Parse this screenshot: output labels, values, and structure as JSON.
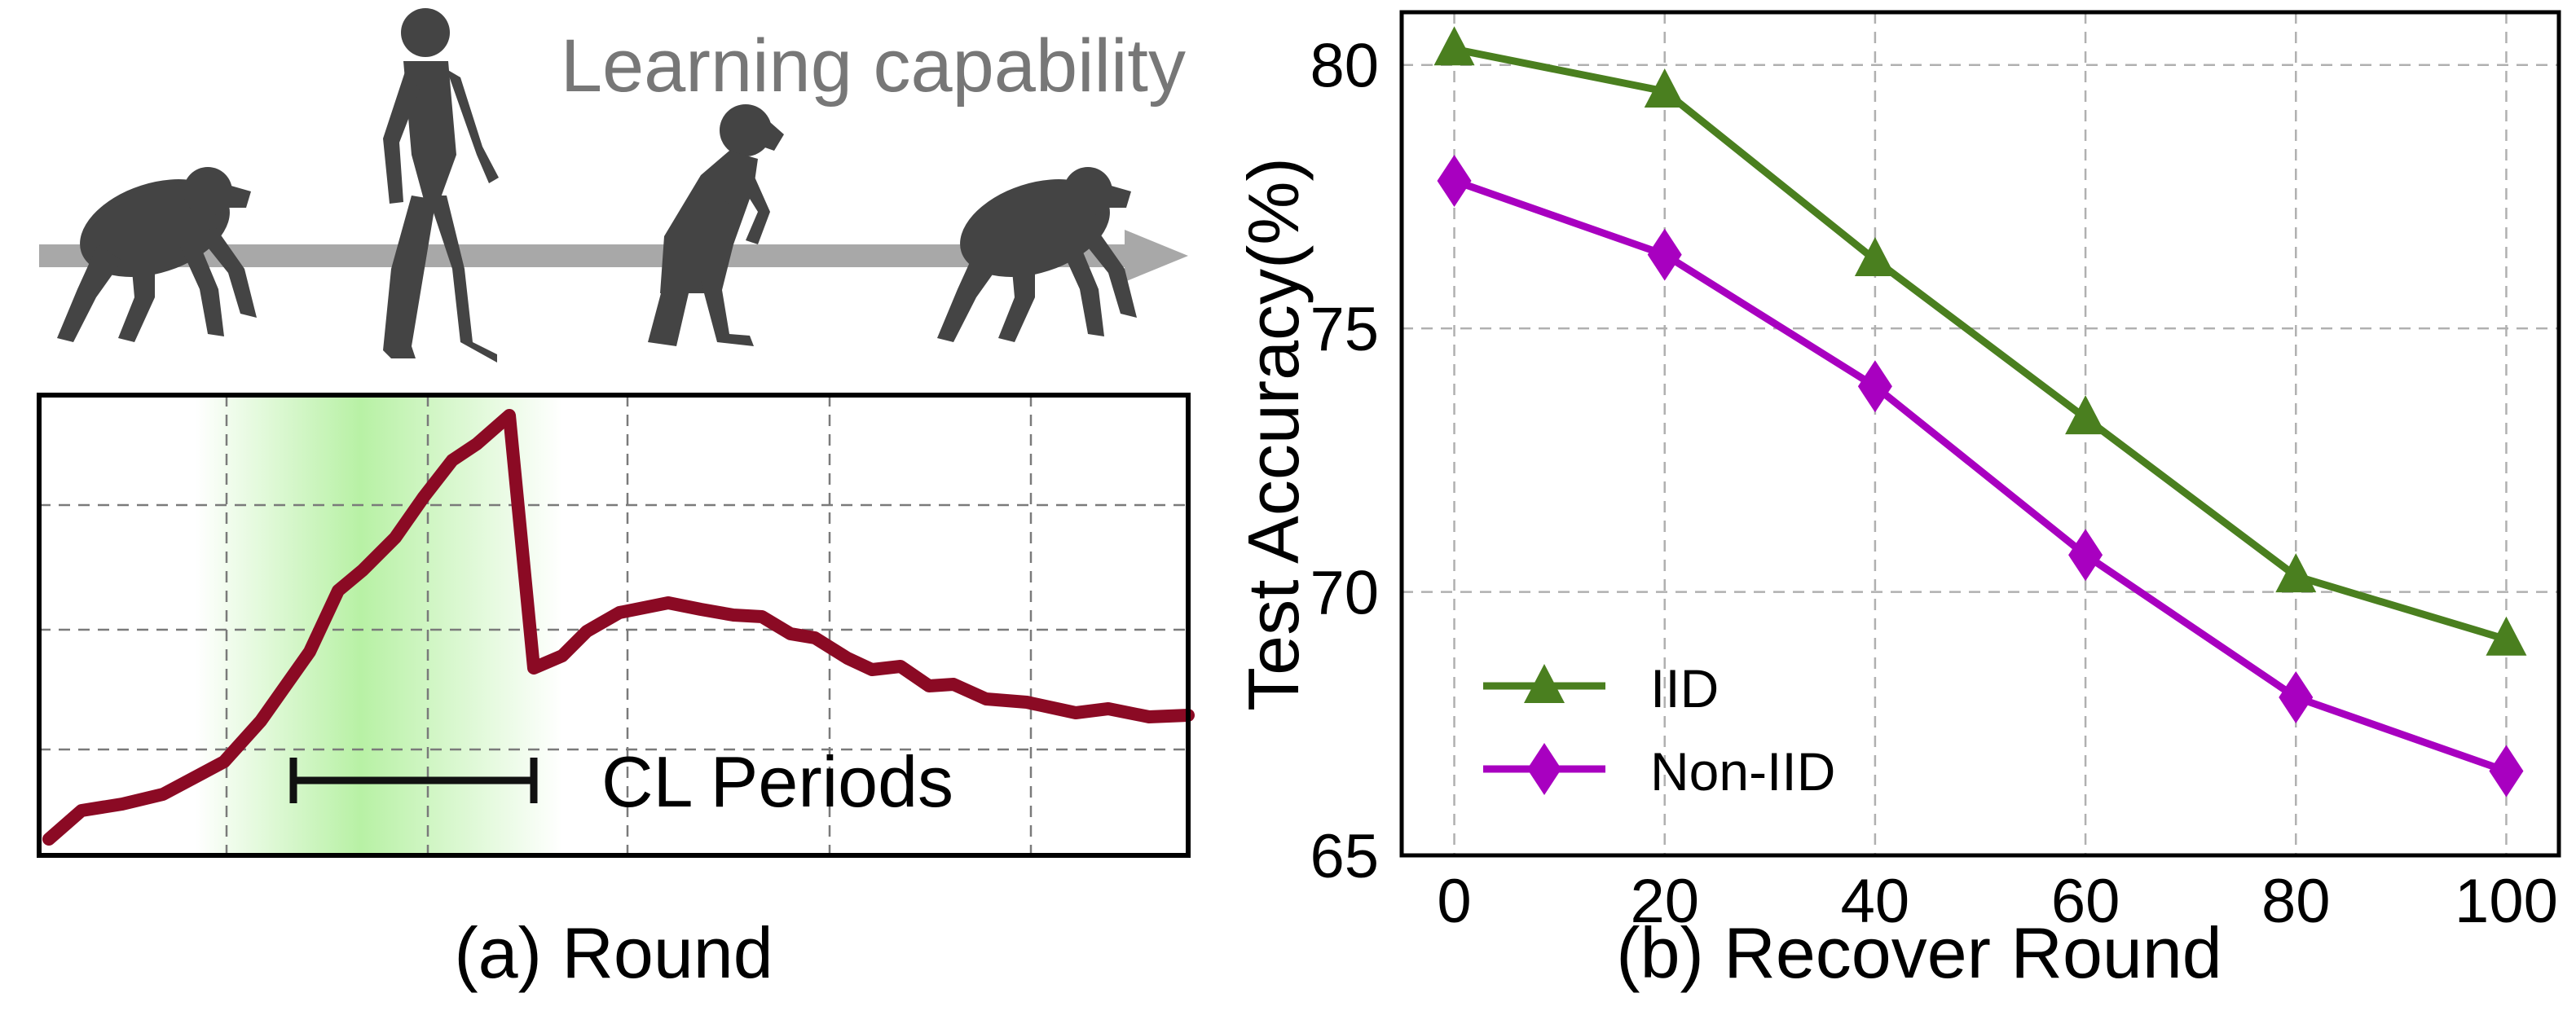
{
  "left_panel": {
    "learning_label": "Learning capability",
    "cl_label": "CL Periods",
    "caption": "(a) Round",
    "colors": {
      "curve": "#8b0a24",
      "arrow": "#a8a8a8",
      "silhouette": "#444444",
      "shade": "#b4f0a0"
    }
  },
  "chart_data": {
    "type": "line",
    "caption": "(b) Recover Round",
    "xlabel": "",
    "ylabel": "Test Accuracy(%)",
    "x": [
      0,
      20,
      40,
      60,
      80,
      100
    ],
    "xlim": [
      -5,
      105
    ],
    "ylim": [
      65,
      81
    ],
    "xticks": [
      "0",
      "20",
      "40",
      "60",
      "80",
      "100"
    ],
    "yticks": [
      65,
      70,
      75,
      80
    ],
    "grid": true,
    "legend_position": "lower-left",
    "series": [
      {
        "name": "IID",
        "values": [
          80.3,
          79.5,
          76.3,
          73.3,
          70.3,
          69.1
        ],
        "color": "#4a7f1f",
        "marker": "triangle"
      },
      {
        "name": "Non-IID",
        "values": [
          77.8,
          76.4,
          73.9,
          70.7,
          68.0,
          66.6
        ],
        "color": "#a800c0",
        "marker": "diamond"
      }
    ]
  }
}
